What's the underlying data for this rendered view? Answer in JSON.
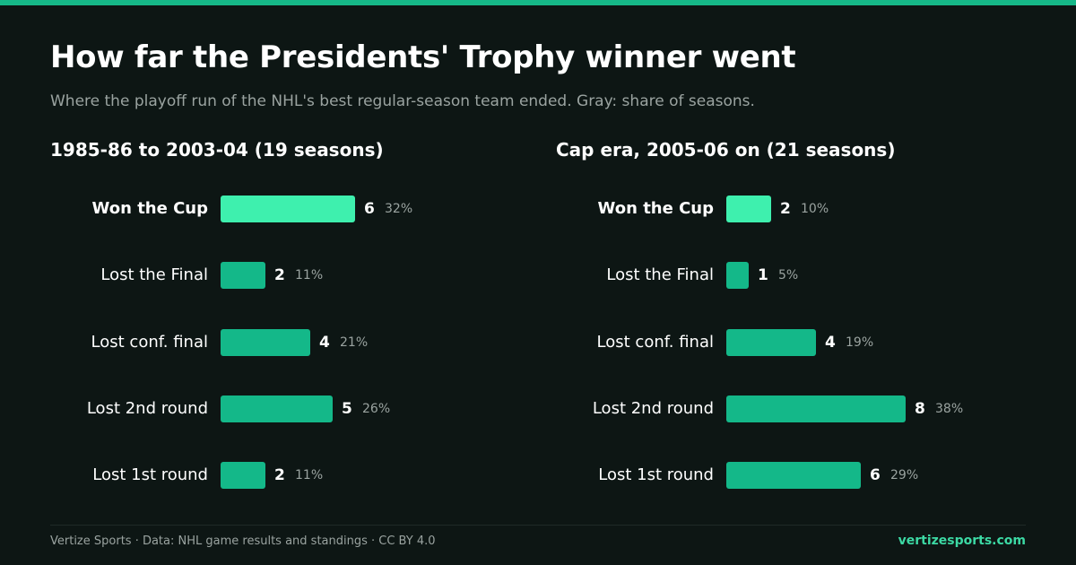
{
  "title": "How far the Presidents' Trophy winner went",
  "subtitle": "Where the playoff run of the NHL's best regular-season team ended. Gray: share of seasons.",
  "colors": {
    "bar": "#14b889",
    "highlight_bar": "#3ef0ae",
    "accent": "#16b888",
    "share_text": "#9aa3a0"
  },
  "footer": {
    "credit": "Vertize Sports · Data: NHL game results and standings · CC BY 4.0",
    "site": "vertizesports.com"
  },
  "chart_data": [
    {
      "type": "bar",
      "orientation": "horizontal",
      "title": "1985-86 to 2003-04 (19 seasons)",
      "categories": [
        "Won the Cup",
        "Lost the Final",
        "Lost conf. final",
        "Lost 2nd round",
        "Lost 1st round"
      ],
      "values": [
        6,
        2,
        4,
        5,
        2
      ],
      "shares": [
        "32%",
        "11%",
        "21%",
        "26%",
        "11%"
      ],
      "highlight": "Won the Cup",
      "xlim": [
        0,
        8
      ],
      "grid": false
    },
    {
      "type": "bar",
      "orientation": "horizontal",
      "title": "Cap era, 2005-06 on (21 seasons)",
      "categories": [
        "Won the Cup",
        "Lost the Final",
        "Lost conf. final",
        "Lost 2nd round",
        "Lost 1st round"
      ],
      "values": [
        2,
        1,
        4,
        8,
        6
      ],
      "shares": [
        "10%",
        "5%",
        "19%",
        "38%",
        "29%"
      ],
      "highlight": "Won the Cup",
      "xlim": [
        0,
        8
      ],
      "grid": false
    }
  ]
}
